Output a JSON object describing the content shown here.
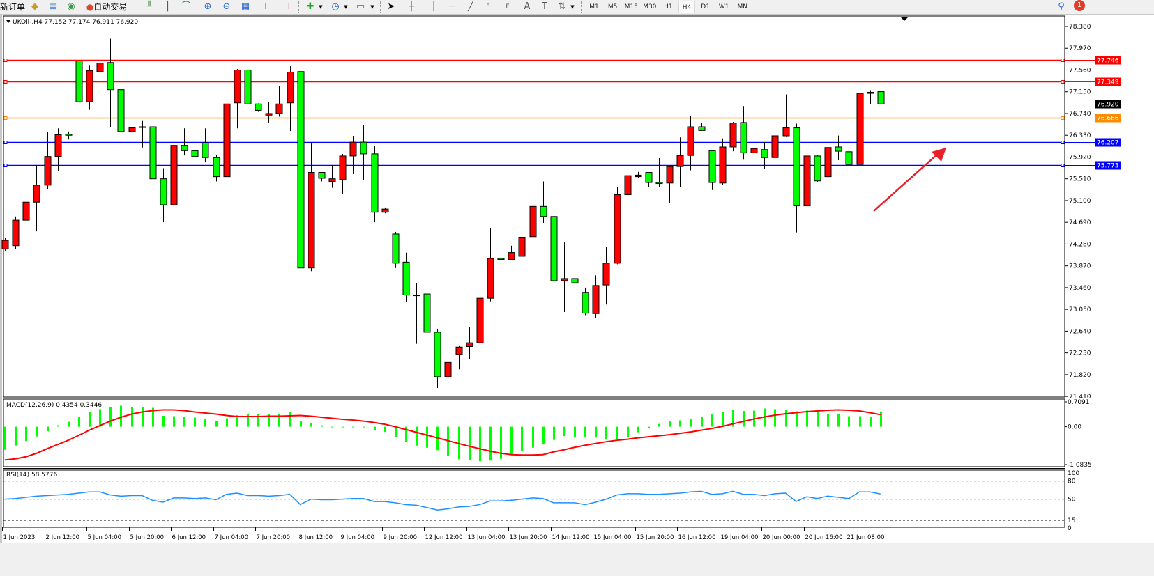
{
  "toolbar": {
    "new_order": "新订单",
    "auto_trading": "自动交易",
    "icons": [
      "market-watch-icon",
      "data-window-icon",
      "signals-icon",
      "auto-trading-icon",
      "bar-chart-icon",
      "candlestick-icon",
      "line-chart-icon",
      "zoom-in-icon",
      "zoom-out-icon",
      "tile-windows-icon",
      "chart-shift-icon",
      "autoscroll-icon",
      "new-chart-icon",
      "periods-icon",
      "templates-icon",
      "cursor-icon",
      "crosshair-icon",
      "vertical-line-icon",
      "horizontal-line-icon",
      "trendline-icon",
      "equidistant-channel-icon",
      "fibonacci-icon",
      "text-icon",
      "text-label-icon",
      "arrows-icon"
    ],
    "tool_glyphs": {
      "fib_e": "E",
      "fib_f": "F",
      "text": "A",
      "label": "T"
    },
    "timeframes": [
      "M1",
      "M5",
      "M15",
      "M30",
      "H1",
      "H4",
      "D1",
      "W1",
      "MN"
    ],
    "selected_timeframe": "H4",
    "notification_count": "1"
  },
  "chart": {
    "header": "UKOil-,H4  77.152 77.174 76.911 76.920",
    "symbol": "UKOil-",
    "timeframe": "H4",
    "up_color": "#ff0000",
    "down_color": "#00ff00",
    "price_axis": [
      "78.380",
      "77.970",
      "77.560",
      "77.150",
      "76.740",
      "76.330",
      "75.920",
      "75.510",
      "75.100",
      "74.690",
      "74.280",
      "73.870",
      "73.460",
      "73.050",
      "72.640",
      "72.230",
      "71.820",
      "71.410"
    ],
    "current_price": {
      "value": "76.920",
      "color": "#000000"
    },
    "levels": [
      {
        "value": "77.746",
        "color": "#ff0000"
      },
      {
        "value": "77.349",
        "color": "#ff0000"
      },
      {
        "value": "76.666",
        "color": "#ff8c00"
      },
      {
        "value": "76.207",
        "color": "#0000ff"
      },
      {
        "value": "75.773",
        "color": "#0000ff"
      }
    ],
    "annotation_arrow_color": "#e8202a",
    "time_axis": [
      "1 Jun 2023",
      "2 Jun 12:00",
      "5 Jun 04:00",
      "5 Jun 20:00",
      "6 Jun 12:00",
      "7 Jun 04:00",
      "7 Jun 20:00",
      "8 Jun 12:00",
      "9 Jun 04:00",
      "9 Jun 20:00",
      "12 Jun 12:00",
      "13 Jun 04:00",
      "13 Jun 20:00",
      "14 Jun 12:00",
      "15 Jun 04:00",
      "15 Jun 20:00",
      "16 Jun 12:00",
      "19 Jun 04:00",
      "20 Jun 00:00",
      "20 Jun 16:00",
      "21 Jun 08:00"
    ],
    "candles_ohlc": [
      [
        74.19,
        74.4,
        74.15,
        74.35
      ],
      [
        74.25,
        74.8,
        74.18,
        74.73
      ],
      [
        74.73,
        75.22,
        74.55,
        75.07
      ],
      [
        75.07,
        75.77,
        74.52,
        75.39
      ],
      [
        75.39,
        76.39,
        75.32,
        75.93
      ],
      [
        75.93,
        76.46,
        75.65,
        76.34
      ],
      [
        76.35,
        76.4,
        76.25,
        76.33
      ],
      [
        77.73,
        77.75,
        76.58,
        76.96
      ],
      [
        76.96,
        77.64,
        76.81,
        77.55
      ],
      [
        77.53,
        78.19,
        77.22,
        77.69
      ],
      [
        77.7,
        78.15,
        76.48,
        77.19
      ],
      [
        77.19,
        77.53,
        76.36,
        76.4
      ],
      [
        76.4,
        76.5,
        76.32,
        76.47
      ],
      [
        76.49,
        76.6,
        76.1,
        76.48
      ],
      [
        76.49,
        76.57,
        75.18,
        75.51
      ],
      [
        75.51,
        75.71,
        74.69,
        75.02
      ],
      [
        75.02,
        76.71,
        75.0,
        76.14
      ],
      [
        76.14,
        76.46,
        75.95,
        76.04
      ],
      [
        76.04,
        76.1,
        75.9,
        75.93
      ],
      [
        76.19,
        76.46,
        75.82,
        75.91
      ],
      [
        75.91,
        75.96,
        75.46,
        75.55
      ],
      [
        75.55,
        77.22,
        75.53,
        76.92
      ],
      [
        76.94,
        77.58,
        76.46,
        77.56
      ],
      [
        77.56,
        77.57,
        76.77,
        76.92
      ],
      [
        76.92,
        76.93,
        76.77,
        76.8
      ],
      [
        76.71,
        76.96,
        76.57,
        76.74
      ],
      [
        76.74,
        77.26,
        76.68,
        76.92
      ],
      [
        76.94,
        77.63,
        76.41,
        77.52
      ],
      [
        77.53,
        77.65,
        73.77,
        73.83
      ],
      [
        73.83,
        76.2,
        73.77,
        75.63
      ],
      [
        75.63,
        75.63,
        75.46,
        75.52
      ],
      [
        75.46,
        75.77,
        75.34,
        75.51
      ],
      [
        75.5,
        75.98,
        75.23,
        75.94
      ],
      [
        75.94,
        76.32,
        75.6,
        76.2
      ],
      [
        76.2,
        76.52,
        75.48,
        75.98
      ],
      [
        75.98,
        76.13,
        74.69,
        74.88
      ],
      [
        74.88,
        74.97,
        74.86,
        74.94
      ],
      [
        74.47,
        74.51,
        73.83,
        73.92
      ],
      [
        73.94,
        74.12,
        73.19,
        73.32
      ],
      [
        73.32,
        73.55,
        72.4,
        73.31
      ],
      [
        73.34,
        73.4,
        71.69,
        72.62
      ],
      [
        72.62,
        72.68,
        71.57,
        71.78
      ],
      [
        71.78,
        72.06,
        71.72,
        72.05
      ],
      [
        72.2,
        72.36,
        71.92,
        72.34
      ],
      [
        72.35,
        72.71,
        72.12,
        72.42
      ],
      [
        72.42,
        73.47,
        72.25,
        73.26
      ],
      [
        73.26,
        74.58,
        73.2,
        74.01
      ],
      [
        74.01,
        74.62,
        73.89,
        73.99
      ],
      [
        73.99,
        74.25,
        73.97,
        74.12
      ],
      [
        74.05,
        74.42,
        73.92,
        74.41
      ],
      [
        74.42,
        75.04,
        74.3,
        74.99
      ],
      [
        74.99,
        75.46,
        74.68,
        74.8
      ],
      [
        74.8,
        75.31,
        73.51,
        73.59
      ],
      [
        73.59,
        74.31,
        73.0,
        73.63
      ],
      [
        73.63,
        73.67,
        73.46,
        73.55
      ],
      [
        73.37,
        73.46,
        72.94,
        72.98
      ],
      [
        72.97,
        73.69,
        72.89,
        73.5
      ],
      [
        73.51,
        74.22,
        73.14,
        73.92
      ],
      [
        73.92,
        75.35,
        73.9,
        75.21
      ],
      [
        75.21,
        75.93,
        75.04,
        75.57
      ],
      [
        75.55,
        75.64,
        75.52,
        75.58
      ],
      [
        75.63,
        75.63,
        75.35,
        75.44
      ],
      [
        75.44,
        75.9,
        75.36,
        75.42
      ],
      [
        75.43,
        75.74,
        75.05,
        75.74
      ],
      [
        75.74,
        76.29,
        75.35,
        75.95
      ],
      [
        75.95,
        76.7,
        75.67,
        76.49
      ],
      [
        76.49,
        76.56,
        76.42,
        76.42
      ],
      [
        76.04,
        76.05,
        75.3,
        75.44
      ],
      [
        75.43,
        76.27,
        75.4,
        76.11
      ],
      [
        76.11,
        76.58,
        76.03,
        76.56
      ],
      [
        76.57,
        76.88,
        75.87,
        76.0
      ],
      [
        76.0,
        76.08,
        75.69,
        76.08
      ],
      [
        76.06,
        76.2,
        75.69,
        75.91
      ],
      [
        75.91,
        76.6,
        75.6,
        76.32
      ],
      [
        76.32,
        77.1,
        76.31,
        76.47
      ],
      [
        76.47,
        76.55,
        74.5,
        75.0
      ],
      [
        75.0,
        76.01,
        74.94,
        75.94
      ],
      [
        75.94,
        75.96,
        75.44,
        75.47
      ],
      [
        75.55,
        76.26,
        75.5,
        76.1
      ],
      [
        76.11,
        76.325,
        75.86,
        76.03
      ],
      [
        76.02,
        76.35,
        75.62,
        75.78
      ],
      [
        75.78,
        77.17,
        75.47,
        77.12
      ],
      [
        77.12,
        77.18,
        76.91,
        77.14
      ],
      [
        77.152,
        77.174,
        76.911,
        76.92
      ]
    ]
  },
  "macd": {
    "header": "MACD(12,26,9) 0.4354 0.3446",
    "axis": [
      "0.7091",
      "0.00",
      "-1.0835"
    ],
    "histogram_color": "#00ff00",
    "signal_color": "#ff0000",
    "histogram": [
      -0.66,
      -0.54,
      -0.41,
      -0.28,
      -0.13,
      0.04,
      0.14,
      0.27,
      0.43,
      0.5,
      0.56,
      0.6,
      0.57,
      0.56,
      0.54,
      0.31,
      0.3,
      0.28,
      0.26,
      0.23,
      0.17,
      0.24,
      0.33,
      0.37,
      0.37,
      0.37,
      0.37,
      0.42,
      0.16,
      0.1,
      0.04,
      -0.01,
      -0.02,
      -0.02,
      -0.02,
      -0.1,
      -0.15,
      -0.29,
      -0.43,
      -0.54,
      -0.6,
      -0.67,
      -0.83,
      -0.93,
      -0.96,
      -0.99,
      -0.97,
      -0.92,
      -0.8,
      -0.7,
      -0.6,
      -0.5,
      -0.38,
      -0.27,
      -0.29,
      -0.31,
      -0.31,
      -0.37,
      -0.36,
      -0.31,
      -0.16,
      -0.03,
      0.08,
      0.15,
      0.18,
      0.21,
      0.27,
      0.35,
      0.43,
      0.49,
      0.45,
      0.46,
      0.52,
      0.5,
      0.49,
      0.44,
      0.46,
      0.46,
      0.37,
      0.35,
      0.3,
      0.3,
      0.28,
      0.4354
    ],
    "signal": [
      -0.95,
      -0.92,
      -0.86,
      -0.76,
      -0.63,
      -0.51,
      -0.39,
      -0.25,
      -0.1,
      0.03,
      0.16,
      0.27,
      0.36,
      0.42,
      0.46,
      0.48,
      0.48,
      0.46,
      0.42,
      0.39,
      0.36,
      0.32,
      0.29,
      0.29,
      0.29,
      0.3,
      0.3,
      0.31,
      0.32,
      0.3,
      0.27,
      0.24,
      0.21,
      0.19,
      0.16,
      0.12,
      0.07,
      0.0,
      -0.08,
      -0.16,
      -0.24,
      -0.32,
      -0.4,
      -0.48,
      -0.56,
      -0.63,
      -0.7,
      -0.76,
      -0.8,
      -0.81,
      -0.81,
      -0.8,
      -0.72,
      -0.66,
      -0.59,
      -0.53,
      -0.48,
      -0.43,
      -0.39,
      -0.36,
      -0.32,
      -0.29,
      -0.26,
      -0.23,
      -0.19,
      -0.15,
      -0.1,
      -0.05,
      0.01,
      0.08,
      0.15,
      0.22,
      0.28,
      0.33,
      0.37,
      0.4,
      0.43,
      0.45,
      0.47,
      0.48,
      0.47,
      0.45,
      0.4,
      0.3446
    ]
  },
  "rsi": {
    "header": "RSI(14) 58.5776",
    "axis": [
      "100",
      "80",
      "50",
      "15",
      "0"
    ],
    "line_color": "#1e90ff",
    "values": [
      50,
      51,
      53,
      55,
      56,
      57,
      58,
      60,
      62,
      62,
      57,
      55,
      56,
      56,
      48,
      45,
      52,
      52,
      51,
      52,
      49,
      58,
      60,
      56,
      56,
      55,
      56,
      58,
      41,
      50,
      49,
      49,
      50,
      51,
      51,
      46,
      46,
      44,
      41,
      40,
      36,
      32,
      34,
      37,
      38,
      41,
      47,
      47,
      48,
      50,
      52,
      51,
      44,
      44,
      44,
      41,
      45,
      50,
      57,
      59,
      59,
      58,
      58,
      59,
      60,
      62,
      63,
      58,
      59,
      63,
      58,
      58,
      56,
      59,
      60,
      46,
      54,
      51,
      55,
      53,
      51,
      62,
      62,
      58.5776
    ]
  }
}
